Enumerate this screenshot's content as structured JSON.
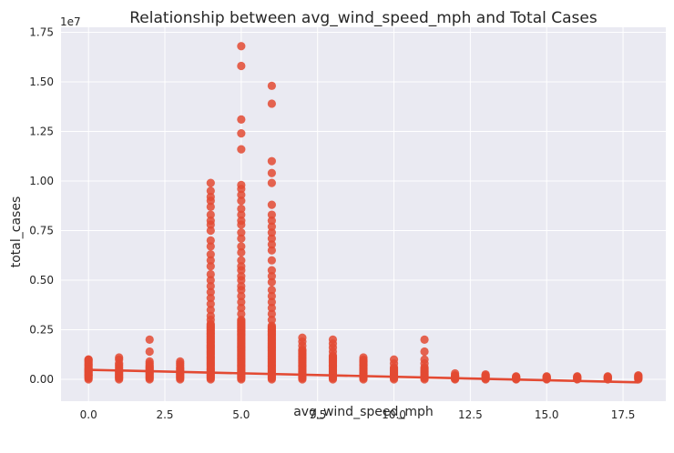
{
  "chart_data": {
    "type": "scatter",
    "title": "Relationship between avg_wind_speed_mph and Total Cases",
    "xlabel": "avg_wind_speed_mph",
    "ylabel": "total_cases",
    "y_offset_label": "1e7",
    "xlim": [
      -0.9,
      18.9
    ],
    "ylim": [
      -0.11,
      1.775
    ],
    "x_ticks": [
      0.0,
      2.5,
      5.0,
      7.5,
      10.0,
      12.5,
      15.0,
      17.5
    ],
    "x_tick_labels": [
      "0.0",
      "2.5",
      "5.0",
      "7.5",
      "10.0",
      "12.5",
      "15.0",
      "17.5"
    ],
    "y_ticks": [
      0.0,
      0.25,
      0.5,
      0.75,
      1.0,
      1.25,
      1.5,
      1.75
    ],
    "y_tick_labels": [
      "0.00",
      "0.25",
      "0.50",
      "0.75",
      "1.00",
      "1.25",
      "1.50",
      "1.75"
    ],
    "y_units_note": "y values in units of 1e7",
    "grid": true,
    "background": "#eaeaf2",
    "point_color": "#e34a33",
    "regression_line": {
      "x": [
        0,
        18
      ],
      "y": [
        0.048,
        -0.015
      ]
    },
    "columns": [
      {
        "x": 0,
        "ymax": 0.1,
        "outliers": [
          0.1,
          0.05,
          0.04,
          0.02
        ]
      },
      {
        "x": 1,
        "ymax": 0.05,
        "outliers": [
          0.11,
          0.1,
          0.08,
          0.07,
          0.06
        ]
      },
      {
        "x": 2,
        "ymax": 0.07,
        "outliers": [
          0.2,
          0.14,
          0.09,
          0.08
        ]
      },
      {
        "x": 3,
        "ymax": 0.06,
        "outliers": [
          0.09,
          0.08,
          0.07
        ]
      },
      {
        "x": 4,
        "ymax": 0.28,
        "outliers": [
          0.99,
          0.95,
          0.92,
          0.9,
          0.87,
          0.83,
          0.8,
          0.78,
          0.75,
          0.7,
          0.67,
          0.63,
          0.6,
          0.57,
          0.53,
          0.5,
          0.47,
          0.44,
          0.41,
          0.38,
          0.35,
          0.32,
          0.3
        ]
      },
      {
        "x": 5,
        "ymax": 0.3,
        "outliers": [
          1.68,
          1.58,
          1.31,
          1.24,
          1.16,
          0.98,
          0.96,
          0.93,
          0.9,
          0.86,
          0.83,
          0.8,
          0.78,
          0.74,
          0.71,
          0.67,
          0.64,
          0.6,
          0.57,
          0.55,
          0.52,
          0.5,
          0.47,
          0.45,
          0.42,
          0.39,
          0.36,
          0.33
        ]
      },
      {
        "x": 6,
        "ymax": 0.27,
        "outliers": [
          1.48,
          1.39,
          1.1,
          1.04,
          0.99,
          0.88,
          0.83,
          0.8,
          0.77,
          0.74,
          0.71,
          0.68,
          0.65,
          0.6,
          0.55,
          0.52,
          0.49,
          0.45,
          0.42,
          0.39,
          0.36,
          0.33,
          0.3
        ]
      },
      {
        "x": 7,
        "ymax": 0.15,
        "outliers": [
          0.21,
          0.19,
          0.17
        ]
      },
      {
        "x": 8,
        "ymax": 0.12,
        "outliers": [
          0.2,
          0.18,
          0.16,
          0.14
        ]
      },
      {
        "x": 9,
        "ymax": 0.1,
        "outliers": [
          0.11
        ]
      },
      {
        "x": 10,
        "ymax": 0.06,
        "outliers": [
          0.1,
          0.08
        ]
      },
      {
        "x": 11,
        "ymax": 0.06,
        "outliers": [
          0.2,
          0.14,
          0.1,
          0.08
        ]
      },
      {
        "x": 12,
        "ymax": 0.02,
        "outliers": [
          0.03
        ]
      },
      {
        "x": 13,
        "ymax": 0.02,
        "outliers": [
          0.025
        ]
      },
      {
        "x": 14,
        "ymax": 0.015,
        "outliers": []
      },
      {
        "x": 15,
        "ymax": 0.015,
        "outliers": []
      },
      {
        "x": 16,
        "ymax": 0.015,
        "outliers": []
      },
      {
        "x": 17,
        "ymax": 0.015,
        "outliers": []
      },
      {
        "x": 18,
        "ymax": 0.02,
        "outliers": []
      }
    ]
  }
}
